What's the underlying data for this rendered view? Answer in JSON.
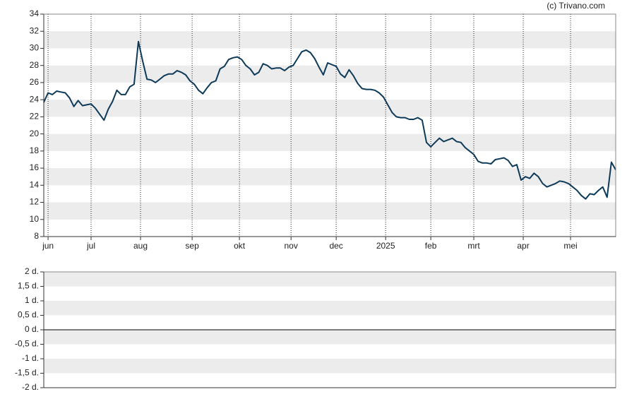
{
  "chart_data": [
    {
      "type": "line",
      "credit": "(c) Trivano.com",
      "xlim": [
        0,
        133
      ],
      "xticks": [
        {
          "value": 1,
          "label": "jun"
        },
        {
          "value": 11,
          "label": "jul"
        },
        {
          "value": 22.5,
          "label": "aug"
        },
        {
          "value": 34.5,
          "label": "sep"
        },
        {
          "value": 45.5,
          "label": "okt"
        },
        {
          "value": 57.5,
          "label": "nov"
        },
        {
          "value": 68,
          "label": "dec"
        },
        {
          "value": 79.5,
          "label": "2025"
        },
        {
          "value": 90,
          "label": "feb"
        },
        {
          "value": 100,
          "label": "mrt"
        },
        {
          "value": 111.5,
          "label": "apr"
        },
        {
          "value": 122.5,
          "label": "mei"
        }
      ],
      "ylim": [
        8,
        34
      ],
      "yticks": [
        8,
        10,
        12,
        14,
        16,
        18,
        20,
        22,
        24,
        26,
        28,
        30,
        32,
        34
      ],
      "color": "#0e3a5a",
      "values": [
        23.7,
        24.8,
        24.6,
        25.0,
        24.9,
        24.8,
        24.2,
        23.2,
        23.9,
        23.3,
        23.4,
        23.5,
        23.0,
        22.3,
        21.6,
        22.9,
        23.8,
        25.1,
        24.6,
        24.6,
        25.5,
        25.8,
        30.8,
        28.5,
        26.4,
        26.3,
        26.0,
        26.4,
        26.8,
        27.0,
        27.0,
        27.4,
        27.2,
        26.9,
        26.2,
        25.8,
        25.1,
        24.7,
        25.4,
        26.0,
        26.2,
        27.6,
        27.9,
        28.7,
        28.9,
        29.0,
        28.7,
        28.0,
        27.6,
        26.9,
        27.2,
        28.2,
        28.0,
        27.6,
        27.7,
        27.7,
        27.4,
        27.8,
        28.0,
        28.8,
        29.6,
        29.8,
        29.5,
        28.8,
        27.8,
        26.9,
        28.3,
        28.1,
        27.9,
        27.0,
        26.6,
        27.5,
        26.8,
        25.9,
        25.3,
        25.2,
        25.2,
        25.1,
        24.8,
        24.3,
        23.4,
        22.5,
        22.0,
        21.9,
        21.9,
        21.7,
        21.7,
        21.9,
        21.6,
        19.0,
        18.5,
        19.0,
        19.5,
        19.1,
        19.3,
        19.5,
        19.1,
        19.0,
        18.4,
        18.0,
        17.6,
        16.8,
        16.6,
        16.6,
        16.5,
        17.0,
        17.1,
        17.2,
        16.9,
        16.2,
        16.4,
        14.6,
        15.0,
        14.8,
        15.4,
        15.0,
        14.2,
        13.8,
        14.0,
        14.2,
        14.5,
        14.4,
        14.2,
        13.8,
        13.4,
        12.8,
        12.4,
        13.0,
        12.9,
        13.4,
        13.8,
        12.6,
        16.7,
        15.8
      ]
    },
    {
      "type": "line",
      "ylim": [
        -2,
        2
      ],
      "yticks": [
        {
          "value": 2,
          "label": "2 d."
        },
        {
          "value": 1.5,
          "label": "1,5 d."
        },
        {
          "value": 1,
          "label": "1 d."
        },
        {
          "value": 0.5,
          "label": "0,5 d."
        },
        {
          "value": 0,
          "label": "0 d."
        },
        {
          "value": -0.5,
          "label": "-0,5 d."
        },
        {
          "value": -1,
          "label": "-1 d."
        },
        {
          "value": -1.5,
          "label": "-1,5 d."
        },
        {
          "value": -2,
          "label": "-2 d."
        }
      ]
    }
  ]
}
